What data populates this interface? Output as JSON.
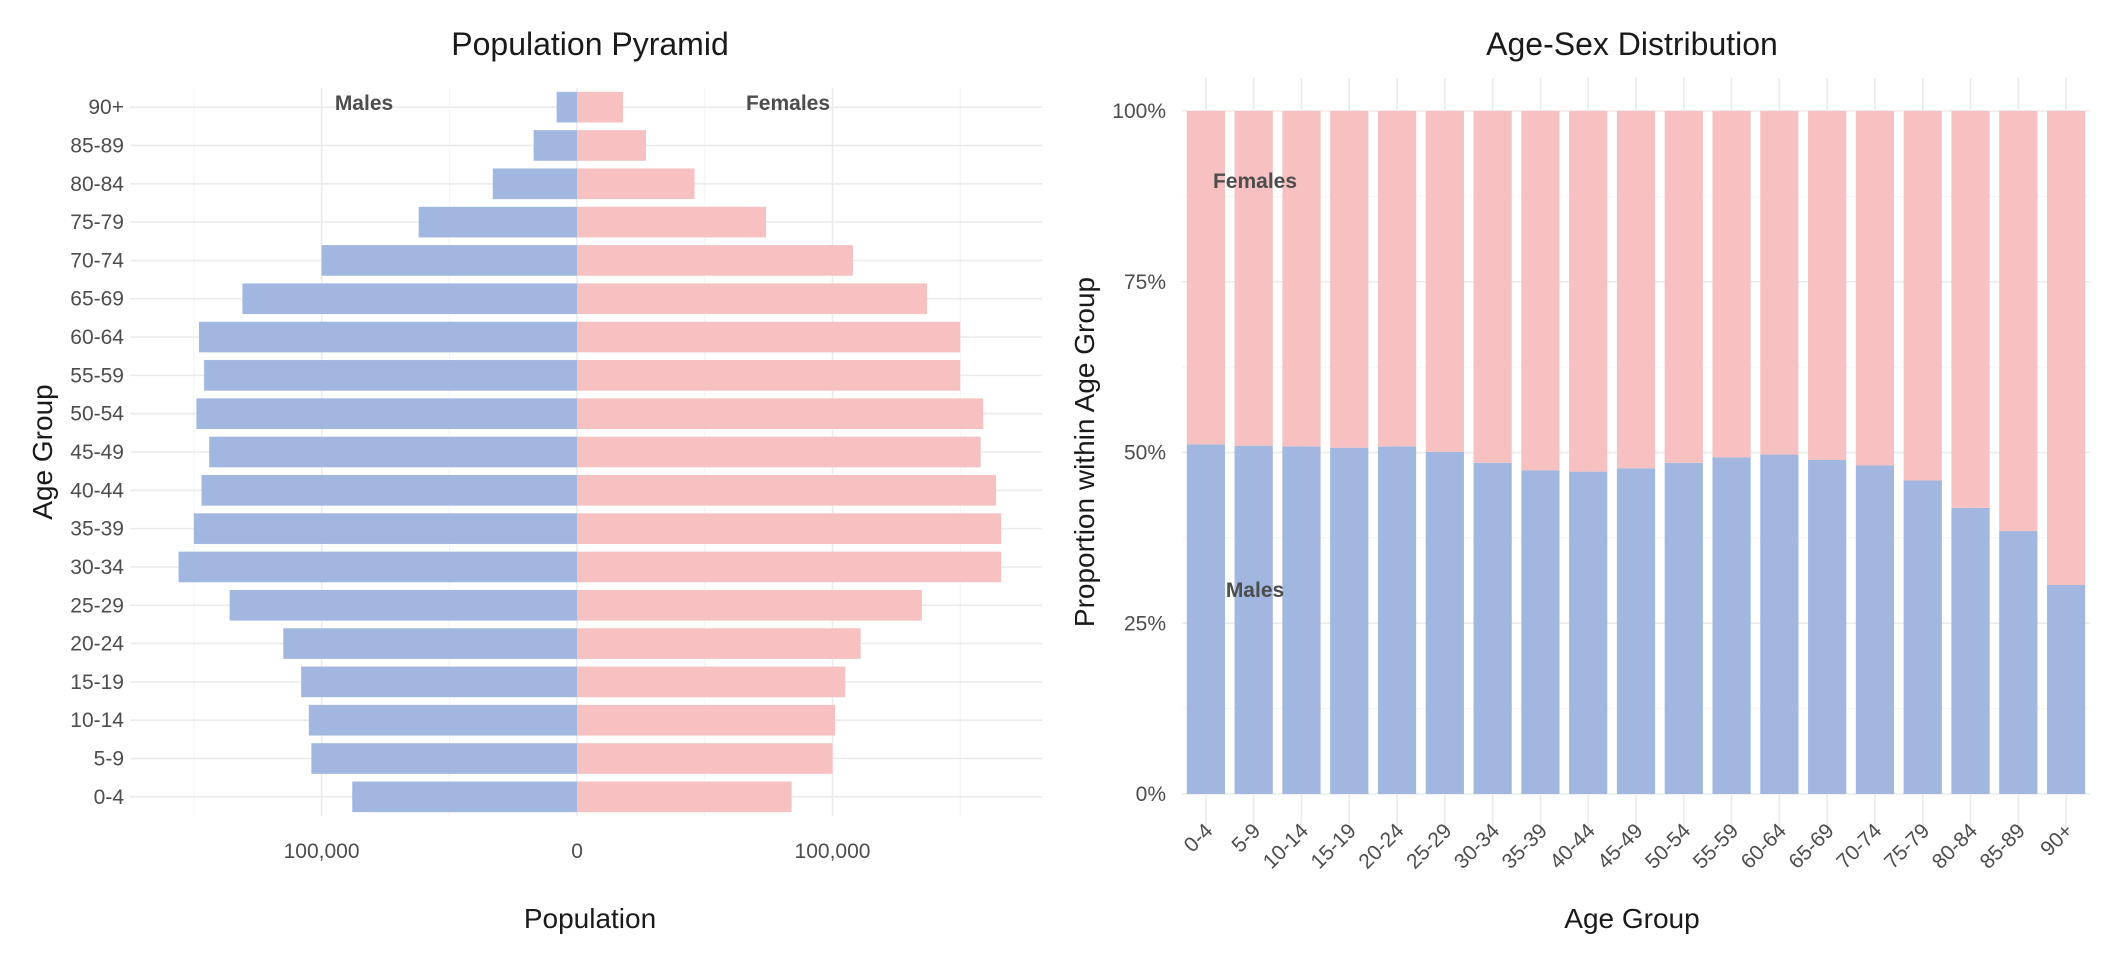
{
  "colors": {
    "males": "#a1b7e0",
    "females": "#f7c1c2",
    "grid": "#ebebeb",
    "text": "#4d4d4d"
  },
  "chart_data": [
    {
      "type": "bar",
      "orientation": "horizontal",
      "title": "Population Pyramid",
      "xlabel": "Population",
      "ylabel": "Age Group",
      "categories": [
        "0-4",
        "5-9",
        "10-14",
        "15-19",
        "20-24",
        "25-29",
        "30-34",
        "35-39",
        "40-44",
        "45-49",
        "50-54",
        "55-59",
        "60-64",
        "65-69",
        "70-74",
        "75-79",
        "80-84",
        "85-89",
        "90+"
      ],
      "series": [
        {
          "name": "Males",
          "values": [
            88000,
            104000,
            105000,
            108000,
            115000,
            136000,
            156000,
            150000,
            147000,
            144000,
            149000,
            146000,
            148000,
            131000,
            100000,
            62000,
            33000,
            17000,
            8000
          ]
        },
        {
          "name": "Females",
          "values": [
            84000,
            100000,
            101000,
            105000,
            111000,
            135000,
            166000,
            166000,
            164000,
            158000,
            159000,
            150000,
            150000,
            137000,
            108000,
            74000,
            46000,
            27000,
            18000
          ]
        }
      ],
      "xlim": [
        -175000,
        182000
      ],
      "xticks": [
        -100000,
        0,
        100000
      ],
      "xtick_labels": [
        "100,000",
        "0",
        "100,000"
      ],
      "annotations": [
        "Males",
        "Females"
      ],
      "grid": true
    },
    {
      "type": "bar",
      "stacked": true,
      "title": "Age-Sex Distribution",
      "xlabel": "Age Group",
      "ylabel": "Proportion within Age Group",
      "categories": [
        "0-4",
        "5-9",
        "10-14",
        "15-19",
        "20-24",
        "25-29",
        "30-34",
        "35-39",
        "40-44",
        "45-49",
        "50-54",
        "55-59",
        "60-64",
        "65-69",
        "70-74",
        "75-79",
        "80-84",
        "85-89",
        "90+"
      ],
      "series": [
        {
          "name": "Males",
          "values": [
            0.512,
            0.51,
            0.509,
            0.507,
            0.509,
            0.501,
            0.485,
            0.474,
            0.472,
            0.477,
            0.485,
            0.493,
            0.497,
            0.489,
            0.481,
            0.459,
            0.419,
            0.385,
            0.306
          ]
        },
        {
          "name": "Females",
          "values": [
            0.488,
            0.49,
            0.491,
            0.493,
            0.491,
            0.499,
            0.515,
            0.526,
            0.528,
            0.523,
            0.515,
            0.507,
            0.503,
            0.511,
            0.519,
            0.541,
            0.581,
            0.615,
            0.694
          ]
        }
      ],
      "ylim": [
        0,
        1
      ],
      "yticks": [
        0,
        0.25,
        0.5,
        0.75,
        1
      ],
      "ytick_labels": [
        "0%",
        "25%",
        "50%",
        "75%",
        "100%"
      ],
      "annotations": [
        "Females",
        "Males"
      ],
      "grid": true
    }
  ]
}
